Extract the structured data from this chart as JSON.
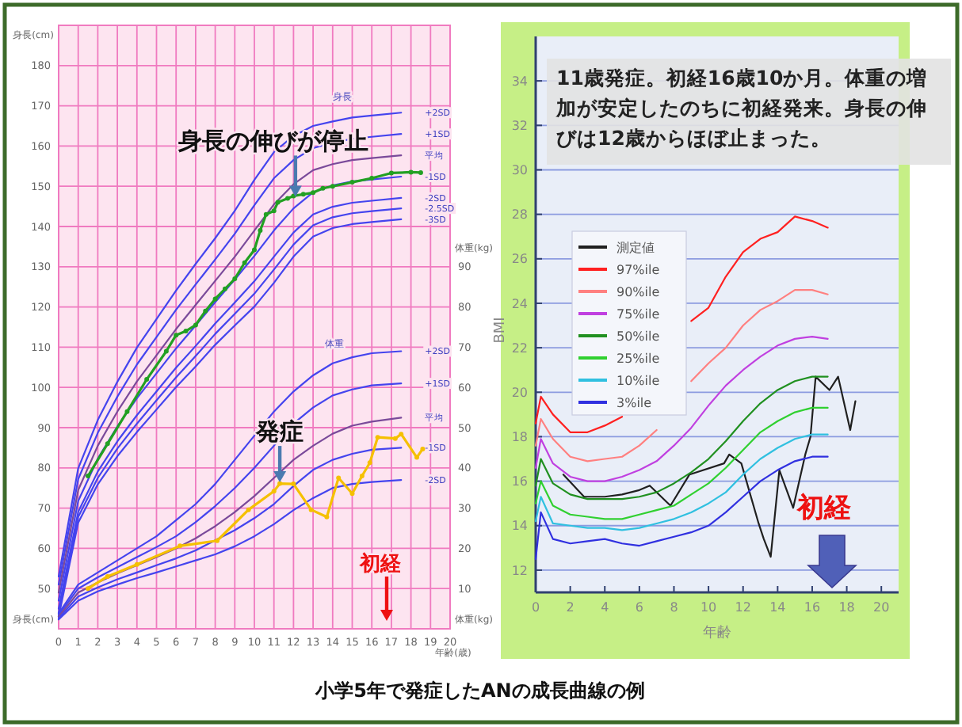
{
  "chart_data": [
    {
      "type": "line",
      "xlabel": "年齢(歳)",
      "ylabel": "身長(cm)",
      "y2label": "体重(kg)",
      "xlim": [
        0,
        20
      ],
      "xticks": [
        0,
        1,
        2,
        3,
        4,
        5,
        6,
        7,
        8,
        9,
        10,
        11,
        12,
        13,
        14,
        15,
        16,
        17,
        18,
        19,
        20
      ],
      "ylim": [
        40,
        190
      ],
      "yticks": [
        50,
        60,
        70,
        80,
        90,
        100,
        110,
        120,
        130,
        140,
        150,
        160,
        170,
        180
      ],
      "y2lim": [
        0,
        150
      ],
      "y2ticks": [
        10,
        20,
        30,
        40,
        50,
        60,
        70,
        80,
        90
      ],
      "grid": true,
      "x": [
        0,
        1,
        2,
        3,
        4,
        5,
        6,
        7,
        8,
        9,
        10,
        11,
        12,
        13,
        14,
        15,
        16,
        17.5
      ],
      "series": [
        {
          "name": "+2SD",
          "color": "#4444ee",
          "values": [
            53,
            79.9,
            91.9,
            101.4,
            109.9,
            117,
            124.1,
            130.7,
            137.1,
            143.9,
            151.6,
            158.5,
            162.5,
            165,
            166.1,
            167.1,
            167.6,
            168.3
          ]
        },
        {
          "name": "+1SD",
          "color": "#4444ee",
          "values": [
            51,
            77.2,
            88.7,
            97.7,
            105.7,
            112.5,
            119.3,
            125.6,
            131.8,
            138.2,
            145.3,
            152,
            156.5,
            159.5,
            160.8,
            161.8,
            162.3,
            163
          ]
        },
        {
          "name": "平均",
          "color": "#7a4a9a",
          "values": [
            49,
            74.5,
            85.5,
            94,
            101.5,
            108,
            114.5,
            120.5,
            126.5,
            132.5,
            139,
            145.5,
            150.5,
            154,
            155.5,
            156.5,
            157,
            157.7
          ]
        },
        {
          "name": "-1SD",
          "color": "#4444ee",
          "values": [
            47,
            71.8,
            82.3,
            90.3,
            97.3,
            103.5,
            109.7,
            115.4,
            121.2,
            126.8,
            132.7,
            139,
            144.5,
            148.5,
            150.2,
            151.2,
            151.7,
            152.4
          ]
        },
        {
          "name": "-2SD",
          "color": "#4444ee",
          "values": [
            45,
            69.1,
            79.1,
            86.6,
            93.1,
            99,
            104.9,
            110.3,
            115.9,
            121.1,
            126.4,
            132.5,
            138.5,
            143,
            144.9,
            145.9,
            146.4,
            147.1
          ]
        },
        {
          "name": "-2.5SD",
          "color": "#4444ee",
          "values": [
            44,
            67.8,
            77.5,
            84.8,
            91,
            96.8,
            102.5,
            107.8,
            113.3,
            118.3,
            123.3,
            129.3,
            135.5,
            140.3,
            142.3,
            143.3,
            143.8,
            144.5
          ]
        },
        {
          "name": "-3SD",
          "color": "#4444ee",
          "values": [
            43,
            66.4,
            75.9,
            82.9,
            88.9,
            94.5,
            100.1,
            105.2,
            110.6,
            115.4,
            120.1,
            126,
            132.5,
            137.5,
            139.6,
            140.6,
            141.1,
            141.8
          ]
        },
        {
          "name": "+2SD",
          "color": "#4444ee",
          "axis": "y2",
          "values": [
            3.8,
            11,
            14,
            17,
            20,
            23,
            27,
            31,
            36,
            42,
            48,
            54,
            59,
            63,
            66,
            67.5,
            68.5,
            69
          ]
        },
        {
          "name": "+1SD",
          "color": "#4444ee",
          "axis": "y2",
          "values": [
            3.4,
            10,
            12.8,
            15.3,
            17.8,
            20.3,
            23,
            26.5,
            30.5,
            35,
            40,
            45.5,
            51,
            55,
            58,
            59.5,
            60.5,
            61
          ]
        },
        {
          "name": "平均",
          "color": "#7a4a9a",
          "axis": "y2",
          "values": [
            3,
            9,
            11.5,
            13.8,
            15.8,
            17.8,
            20,
            22.5,
            25.5,
            29,
            33,
            37.5,
            42,
            45.5,
            48.5,
            50.5,
            51.5,
            52.5
          ]
        },
        {
          "name": "-1SD",
          "color": "#4444ee",
          "axis": "y2",
          "values": [
            2.6,
            8,
            10.3,
            12.3,
            14,
            15.8,
            17.5,
            19.5,
            22,
            24.5,
            27.5,
            31,
            35.5,
            39.5,
            42,
            43.5,
            44.5,
            45
          ]
        },
        {
          "name": "-2SD",
          "color": "#4444ee",
          "axis": "y2",
          "values": [
            2.3,
            7,
            9.3,
            11,
            12.6,
            14,
            15.5,
            17,
            18.5,
            20.5,
            23,
            26,
            29.5,
            32.5,
            35,
            36,
            36.5,
            37
          ]
        },
        {
          "color": "#22a022",
          "marker": "circle",
          "x": [
            1.5,
            2.5,
            3.5,
            4.5,
            5.5,
            6,
            6.5,
            7,
            7.5,
            8,
            8.5,
            9,
            9.5,
            10,
            10.3,
            10.6,
            11,
            11.2,
            11.7,
            12,
            12.5,
            13,
            13.5,
            14,
            15,
            16,
            17,
            18,
            18.5
          ],
          "values": [
            78,
            86,
            94,
            102,
            109,
            113,
            114,
            115.5,
            119,
            122,
            124.5,
            127,
            131,
            134.2,
            139,
            143,
            143.9,
            146,
            147,
            147.6,
            148,
            148.4,
            149.5,
            150,
            151,
            152,
            153.3,
            153.5,
            153.4
          ]
        },
        {
          "color": "#f5c000",
          "marker": "circle",
          "axis": "y2",
          "x": [
            1.5,
            2.5,
            4,
            6.2,
            8.1,
            9.7,
            11,
            11.3,
            12,
            12.9,
            13.7,
            14.3,
            15,
            15.5,
            15.9,
            16.3,
            17.2,
            17.5,
            18.3,
            18.6
          ],
          "values": [
            10,
            13,
            16,
            20.6,
            21.9,
            29.6,
            34.2,
            36.1,
            36,
            29.6,
            27.8,
            37.5,
            33.6,
            38,
            41.3,
            47.6,
            47.3,
            48.4,
            42.6,
            44.7
          ]
        }
      ],
      "annotations": [
        {
          "text": "身長の伸びが停止",
          "x": 12.1,
          "y": 147.4
        },
        {
          "text": "発症",
          "x": 11.3,
          "y": 76.4
        },
        "初経",
        "身長",
        "体重",
        "小学5年で発症したANの成長曲線の例"
      ]
    },
    {
      "type": "line",
      "xlabel": "年齢",
      "ylabel": "BMI",
      "xlim": [
        0,
        21
      ],
      "xticks": [
        0,
        2,
        4,
        6,
        8,
        10,
        12,
        14,
        16,
        18,
        20
      ],
      "ylim": [
        11,
        36
      ],
      "yticks": [
        12,
        14,
        16,
        18,
        20,
        22,
        24,
        26,
        28,
        30,
        32,
        34
      ],
      "grid": "y",
      "legend": "left",
      "x": [
        0,
        0.3,
        1,
        2,
        3,
        4,
        5,
        6,
        7,
        8,
        9,
        10,
        11,
        12,
        13,
        14,
        15,
        16,
        16.9
      ],
      "series": [
        {
          "name": "測定値",
          "color": "#202020",
          "x": [
            1.6,
            2.8,
            4,
            5,
            6,
            6.6,
            7.8,
            8.9,
            10.9,
            11.2,
            11.9,
            12.9,
            13.2,
            13.6,
            14.1,
            14.9,
            15.6,
            15.9,
            16.2,
            17,
            17.5,
            18.2,
            18.5
          ],
          "values": [
            16.3,
            15.3,
            15.3,
            15.4,
            15.6,
            15.8,
            14.9,
            16.3,
            16.8,
            17.2,
            16.8,
            14.1,
            13.4,
            12.6,
            16.5,
            14.8,
            17.2,
            18,
            20.7,
            20.1,
            20.7,
            18.3,
            19.6
          ]
        },
        {
          "name": "97%ile",
          "color": "#ff2020",
          "values": [
            18.6,
            19.8,
            19,
            18.2,
            18.2,
            18.5,
            18.9,
            null,
            null,
            null,
            23.2,
            23.8,
            25.2,
            26.3,
            26.9,
            27.2,
            27.9,
            27.7,
            27.4
          ]
        },
        {
          "name": "90%ile",
          "color": "#ff8080",
          "values": [
            17.6,
            18.8,
            17.9,
            17.1,
            16.9,
            17,
            17.1,
            17.6,
            18.3,
            null,
            20.5,
            21.3,
            22,
            23,
            23.7,
            24.1,
            24.6,
            24.6,
            24.4
          ]
        },
        {
          "name": "75%ile",
          "color": "#c040e0",
          "values": [
            16.6,
            17.9,
            16.8,
            16.2,
            16,
            16,
            16.2,
            16.5,
            16.9,
            17.6,
            18.4,
            19.4,
            20.3,
            21,
            21.6,
            22.1,
            22.4,
            22.5,
            22.4
          ]
        },
        {
          "name": "50%ile",
          "color": "#209020",
          "values": [
            15.8,
            17,
            15.9,
            15.4,
            15.2,
            15.2,
            15.2,
            15.3,
            15.5,
            15.9,
            16.4,
            17,
            17.8,
            18.7,
            19.5,
            20.1,
            20.5,
            20.7,
            20.7
          ]
        },
        {
          "name": "25%ile",
          "color": "#30d030",
          "values": [
            15,
            16,
            14.9,
            14.5,
            14.4,
            14.3,
            14.3,
            14.5,
            14.7,
            14.9,
            15.4,
            15.9,
            16.6,
            17.4,
            18.2,
            18.7,
            19.1,
            19.3,
            19.3
          ]
        },
        {
          "name": "10%ile",
          "color": "#30c0e0",
          "values": [
            14.2,
            15.3,
            14.1,
            14,
            13.9,
            13.9,
            13.8,
            13.9,
            14.1,
            14.3,
            14.6,
            15,
            15.5,
            16.3,
            17,
            17.5,
            17.9,
            18.1,
            18.1
          ]
        },
        {
          "name": "3%ile",
          "color": "#3030e0",
          "values": [
            12.5,
            14.6,
            13.4,
            13.2,
            13.3,
            13.4,
            13.2,
            13.1,
            13.3,
            13.5,
            13.7,
            14,
            14.6,
            15.3,
            16,
            16.5,
            16.9,
            17.1,
            17.1
          ]
        }
      ],
      "annotations": [
        "11歳発症。初経16歳10か月。体重の増加が安定したのちに初経発来。身長の伸びは12歳からほぼ止まった。",
        "初経"
      ]
    }
  ]
}
